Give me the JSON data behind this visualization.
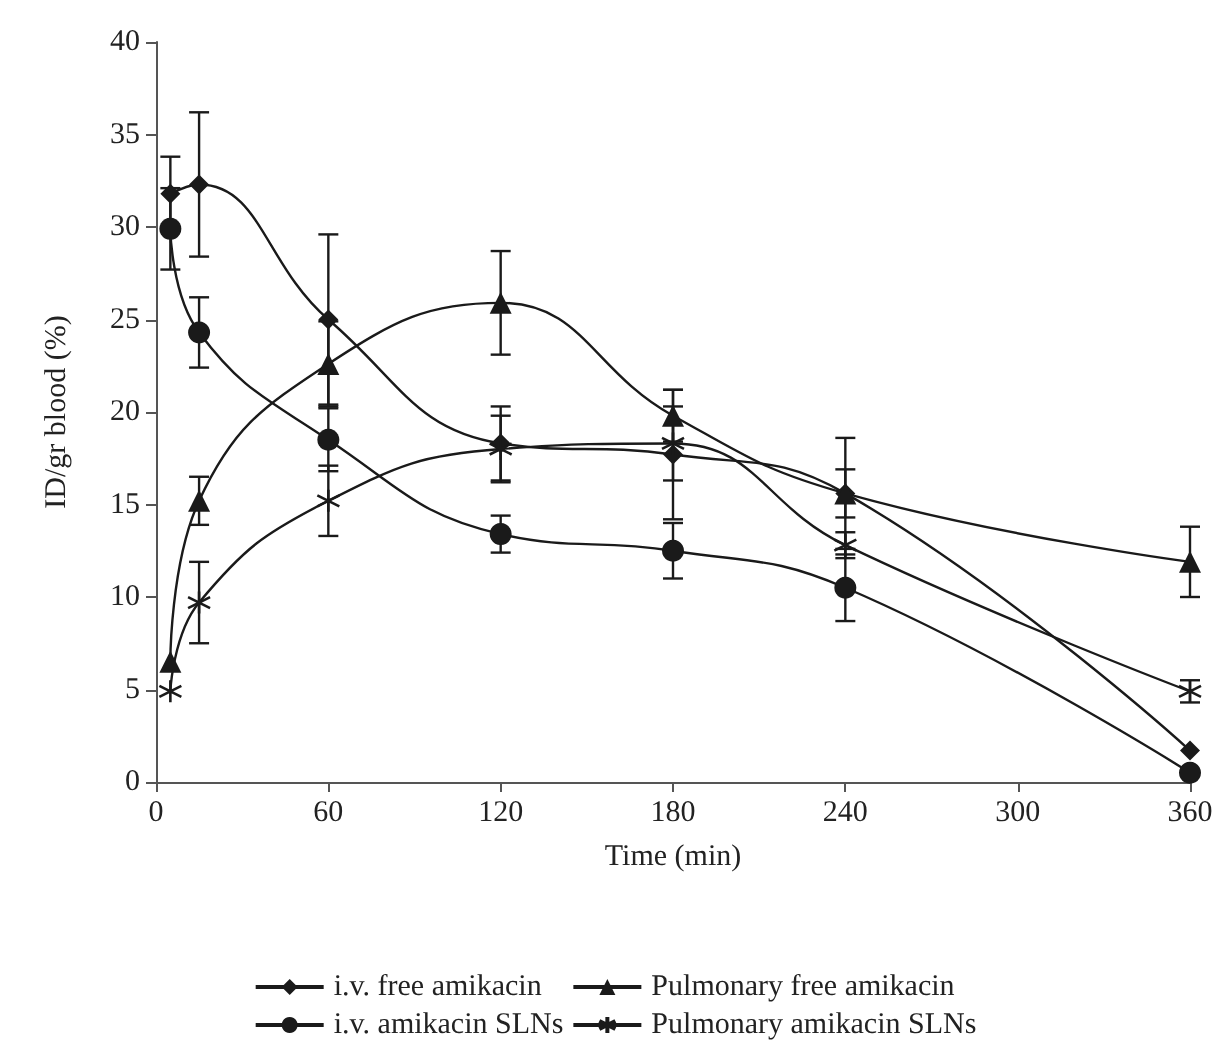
{
  "chart_data": {
    "type": "line",
    "xlabel": "Time (min)",
    "ylabel": "ID/gr blood (%)",
    "x": [
      5,
      15,
      60,
      120,
      180,
      240,
      360
    ],
    "xlim": [
      0,
      360
    ],
    "xticks": [
      0,
      60,
      120,
      180,
      240,
      300,
      360
    ],
    "ylim": [
      0,
      40
    ],
    "yticks": [
      0,
      5,
      10,
      15,
      20,
      25,
      30,
      35,
      40
    ],
    "grid": false,
    "legend": "bottom",
    "series": [
      {
        "name": "i.v. free amikacin",
        "color": "#1a1a1a",
        "marker": "diamond",
        "values": [
          31.8,
          32.3,
          25,
          18.3,
          17.7,
          15.6,
          1.7
        ],
        "errors": [
          2,
          3.9,
          4.6,
          2,
          3.5,
          3,
          null
        ]
      },
      {
        "name": "i.v. amikacin SLNs",
        "color": "#1a1a1a",
        "marker": "circle",
        "values": [
          29.9,
          24.3,
          18.5,
          13.4,
          12.5,
          10.5,
          0.5
        ],
        "errors": [
          2.2,
          1.9,
          1.7,
          1,
          1.5,
          1.8,
          null
        ]
      },
      {
        "name": "Pulmonary free amikacin",
        "color": "#1a1a1a",
        "marker": "triangle",
        "values": [
          6.5,
          15.2,
          22.6,
          25.9,
          19.8,
          15.6,
          11.9
        ],
        "errors": [
          null,
          1.3,
          2.3,
          2.8,
          1.4,
          1.3,
          1.9
        ]
      },
      {
        "name": "Pulmonary amikacin SLNs",
        "color": "#1a1a1a",
        "marker": "cross",
        "values": [
          4.9,
          9.7,
          15.2,
          18,
          18.3,
          12.8,
          4.9
        ],
        "errors": [
          null,
          2.2,
          1.9,
          1.8,
          2,
          0.7,
          0.6
        ]
      }
    ]
  }
}
